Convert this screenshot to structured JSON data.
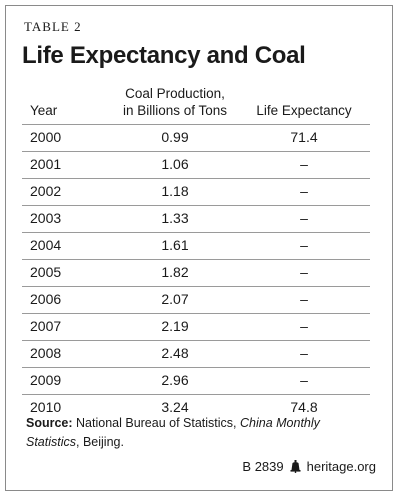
{
  "table_label": "TABLE 2",
  "title": "Life Expectancy and Coal",
  "headers": {
    "year": "Year",
    "coal_line1": "Coal Production,",
    "coal_line2": "in Billions of Tons",
    "life": "Life Expectancy"
  },
  "rows": [
    {
      "year": "2000",
      "coal": "0.99",
      "life": "71.4"
    },
    {
      "year": "2001",
      "coal": "1.06",
      "life": "–"
    },
    {
      "year": "2002",
      "coal": "1.18",
      "life": "–"
    },
    {
      "year": "2003",
      "coal": "1.33",
      "life": "–"
    },
    {
      "year": "2004",
      "coal": "1.61",
      "life": "–"
    },
    {
      "year": "2005",
      "coal": "1.82",
      "life": "–"
    },
    {
      "year": "2006",
      "coal": "2.07",
      "life": "–"
    },
    {
      "year": "2007",
      "coal": "2.19",
      "life": "–"
    },
    {
      "year": "2008",
      "coal": "2.48",
      "life": "–"
    },
    {
      "year": "2009",
      "coal": "2.96",
      "life": "–"
    },
    {
      "year": "2010",
      "coal": "3.24",
      "life": "74.8"
    }
  ],
  "source": {
    "label": "Source:",
    "text1": " National Bureau of Statistics, ",
    "publication": "China Monthly Statistics",
    "text2": ", Beijing."
  },
  "footer": {
    "code": "B 2839",
    "icon": "liberty-bell-icon",
    "site": "heritage.org"
  }
}
